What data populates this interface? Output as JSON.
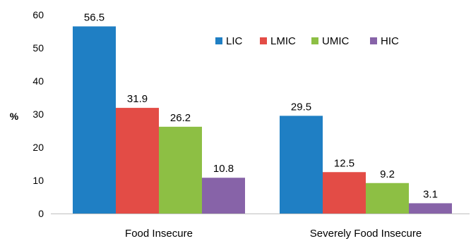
{
  "chart_data": {
    "type": "bar",
    "title": "",
    "xlabel": "",
    "ylabel": "%",
    "ylim": [
      0,
      60
    ],
    "yticks": [
      0,
      10,
      20,
      30,
      40,
      50,
      60
    ],
    "categories": [
      "Food Insecure",
      "Severely Food Insecure"
    ],
    "series": [
      {
        "name": "LIC",
        "color": "#1f7fc4",
        "values": [
          56.5,
          29.5
        ]
      },
      {
        "name": "LMIC",
        "color": "#e34c46",
        "values": [
          31.9,
          12.5
        ]
      },
      {
        "name": "UMIC",
        "color": "#8dbf44",
        "values": [
          26.2,
          9.2
        ]
      },
      {
        "name": "HIC",
        "color": "#8763a8",
        "values": [
          10.8,
          3.1
        ]
      }
    ],
    "legend": "top-right",
    "grid": false
  }
}
